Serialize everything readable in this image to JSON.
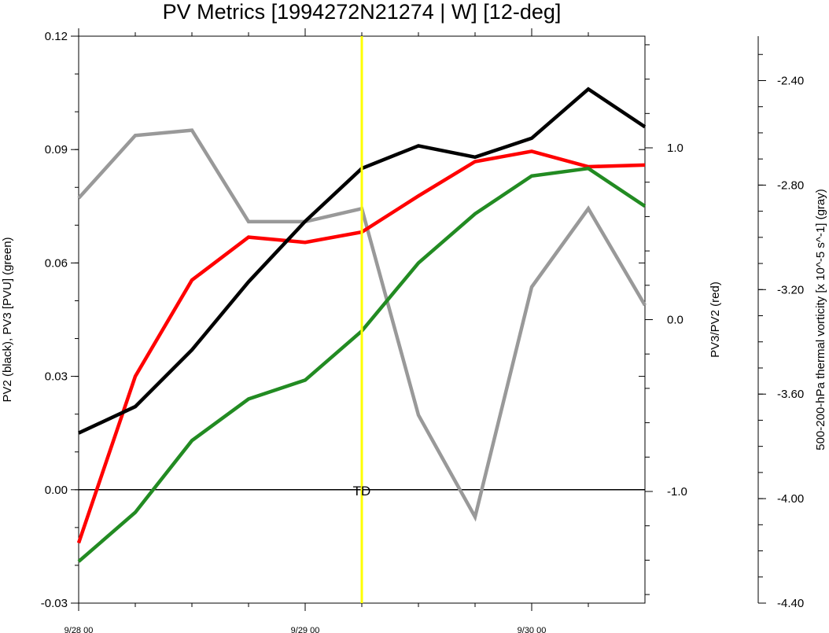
{
  "chart_data": {
    "type": "line",
    "title": "PV Metrics [1994272N21274 | W] [12-deg]",
    "x": [
      0,
      0.25,
      0.5,
      0.75,
      1.0,
      1.25,
      1.5,
      1.75,
      2.0,
      2.25,
      2.5
    ],
    "xticks": [
      {
        "value": 0,
        "label": "9/28 00"
      },
      {
        "value": 1,
        "label": "9/29 00"
      },
      {
        "value": 2,
        "label": "9/30 00"
      }
    ],
    "xlim": [
      0,
      2.5
    ],
    "left_axis": {
      "label": "PV2 (black), PV3 [PVU] (green)",
      "ylim": [
        -0.03,
        0.12
      ],
      "ticks": [
        -0.03,
        0.0,
        0.03,
        0.06,
        0.09,
        0.12
      ],
      "tick_labels": [
        "-0.03",
        "0.00",
        "0.03",
        "0.06",
        "0.09",
        "0.12"
      ]
    },
    "right_axis": {
      "label": "PV3/PV2 (red)",
      "ylim": [
        -1.65,
        1.65
      ],
      "ticks": [
        -1.0,
        0.0,
        1.0
      ],
      "tick_labels": [
        "-1.0",
        "0.0",
        "1.0"
      ]
    },
    "far_right_axis": {
      "label": "500-200-hPa thermal vorticity [x 10^-5 s^-1] (gray)",
      "ylim": [
        -4.4,
        -2.23
      ],
      "ticks": [
        -4.4,
        -4.0,
        -3.6,
        -3.2,
        -2.8,
        -2.4
      ],
      "tick_labels": [
        "-4.40",
        "-4.00",
        "-3.60",
        "-3.20",
        "-2.80",
        "-2.40"
      ]
    },
    "series": [
      {
        "axis": "left",
        "color": "#000000",
        "values": [
          0.015,
          0.022,
          0.037,
          0.055,
          0.071,
          0.085,
          0.091,
          0.088,
          0.093,
          0.106,
          0.096
        ]
      },
      {
        "axis": "left",
        "color": "#228b22",
        "values": [
          -0.019,
          -0.006,
          0.013,
          0.024,
          0.029,
          0.042,
          0.06,
          0.073,
          0.083,
          0.085,
          0.075
        ]
      },
      {
        "axis": "right",
        "color": "#ff0000",
        "values": [
          -1.3,
          -0.33,
          0.23,
          0.48,
          0.45,
          0.51,
          0.72,
          0.92,
          0.98,
          0.89,
          0.9
        ]
      },
      {
        "axis": "far_right",
        "color": "#999999",
        "values": [
          -2.85,
          -2.61,
          -2.59,
          -2.94,
          -2.94,
          -2.89,
          -3.68,
          -4.07,
          -3.19,
          -2.89,
          -3.26
        ]
      }
    ],
    "vertical_line": {
      "x": 1.25,
      "color": "#ffff00"
    },
    "zero_line": {
      "axis": "left",
      "value": 0.0,
      "label": "TD"
    },
    "grid": false,
    "legend": "none"
  }
}
